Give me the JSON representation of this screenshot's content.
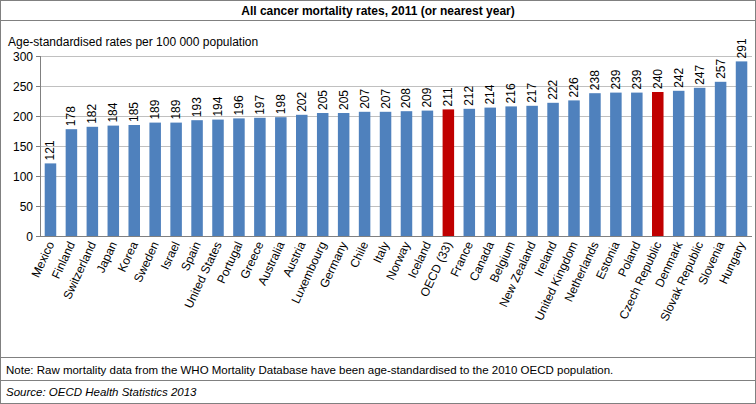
{
  "chart_data": {
    "type": "bar",
    "title": "All cancer mortality rates, 2011 (or nearest year)",
    "y_label": "Age-standardised rates per 100 000 population",
    "note": "Note: Raw mortality data from the WHO Mortality Database have been age-standardised to the 2010 OECD population.",
    "source": "Source: OECD Health Statistics 2013",
    "categories": [
      "Mexico",
      "Finland",
      "Switzerland",
      "Japan",
      "Korea",
      "Sweden",
      "Israel",
      "Spain",
      "United States",
      "Portugal",
      "Greece",
      "Australia",
      "Austria",
      "Luxembourg",
      "Germany",
      "Chile",
      "Italy",
      "Norway",
      "Iceland",
      "OECD (33)",
      "France",
      "Canada",
      "Belgium",
      "New Zealand",
      "Ireland",
      "United Kingdom",
      "Netherlands",
      "Estonia",
      "Poland",
      "Czech Republic",
      "Denmark",
      "Slovak Republic",
      "Slovenia",
      "Hungary"
    ],
    "values": [
      121,
      178,
      182,
      184,
      185,
      189,
      189,
      193,
      194,
      196,
      197,
      198,
      202,
      205,
      205,
      207,
      207,
      208,
      209,
      211,
      212,
      214,
      216,
      217,
      222,
      226,
      238,
      239,
      239,
      240,
      242,
      247,
      257,
      291
    ],
    "colors": [
      "#4f81bd",
      "#4f81bd",
      "#4f81bd",
      "#4f81bd",
      "#4f81bd",
      "#4f81bd",
      "#4f81bd",
      "#4f81bd",
      "#4f81bd",
      "#4f81bd",
      "#4f81bd",
      "#4f81bd",
      "#4f81bd",
      "#4f81bd",
      "#4f81bd",
      "#4f81bd",
      "#4f81bd",
      "#4f81bd",
      "#4f81bd",
      "#c00000",
      "#4f81bd",
      "#4f81bd",
      "#4f81bd",
      "#4f81bd",
      "#4f81bd",
      "#4f81bd",
      "#4f81bd",
      "#4f81bd",
      "#4f81bd",
      "#c00000",
      "#4f81bd",
      "#4f81bd",
      "#4f81bd",
      "#4f81bd"
    ],
    "ylim": [
      0,
      300
    ],
    "yticks": [
      0,
      50,
      100,
      150,
      200,
      250,
      300
    ],
    "grid": true,
    "data_labels": true
  }
}
